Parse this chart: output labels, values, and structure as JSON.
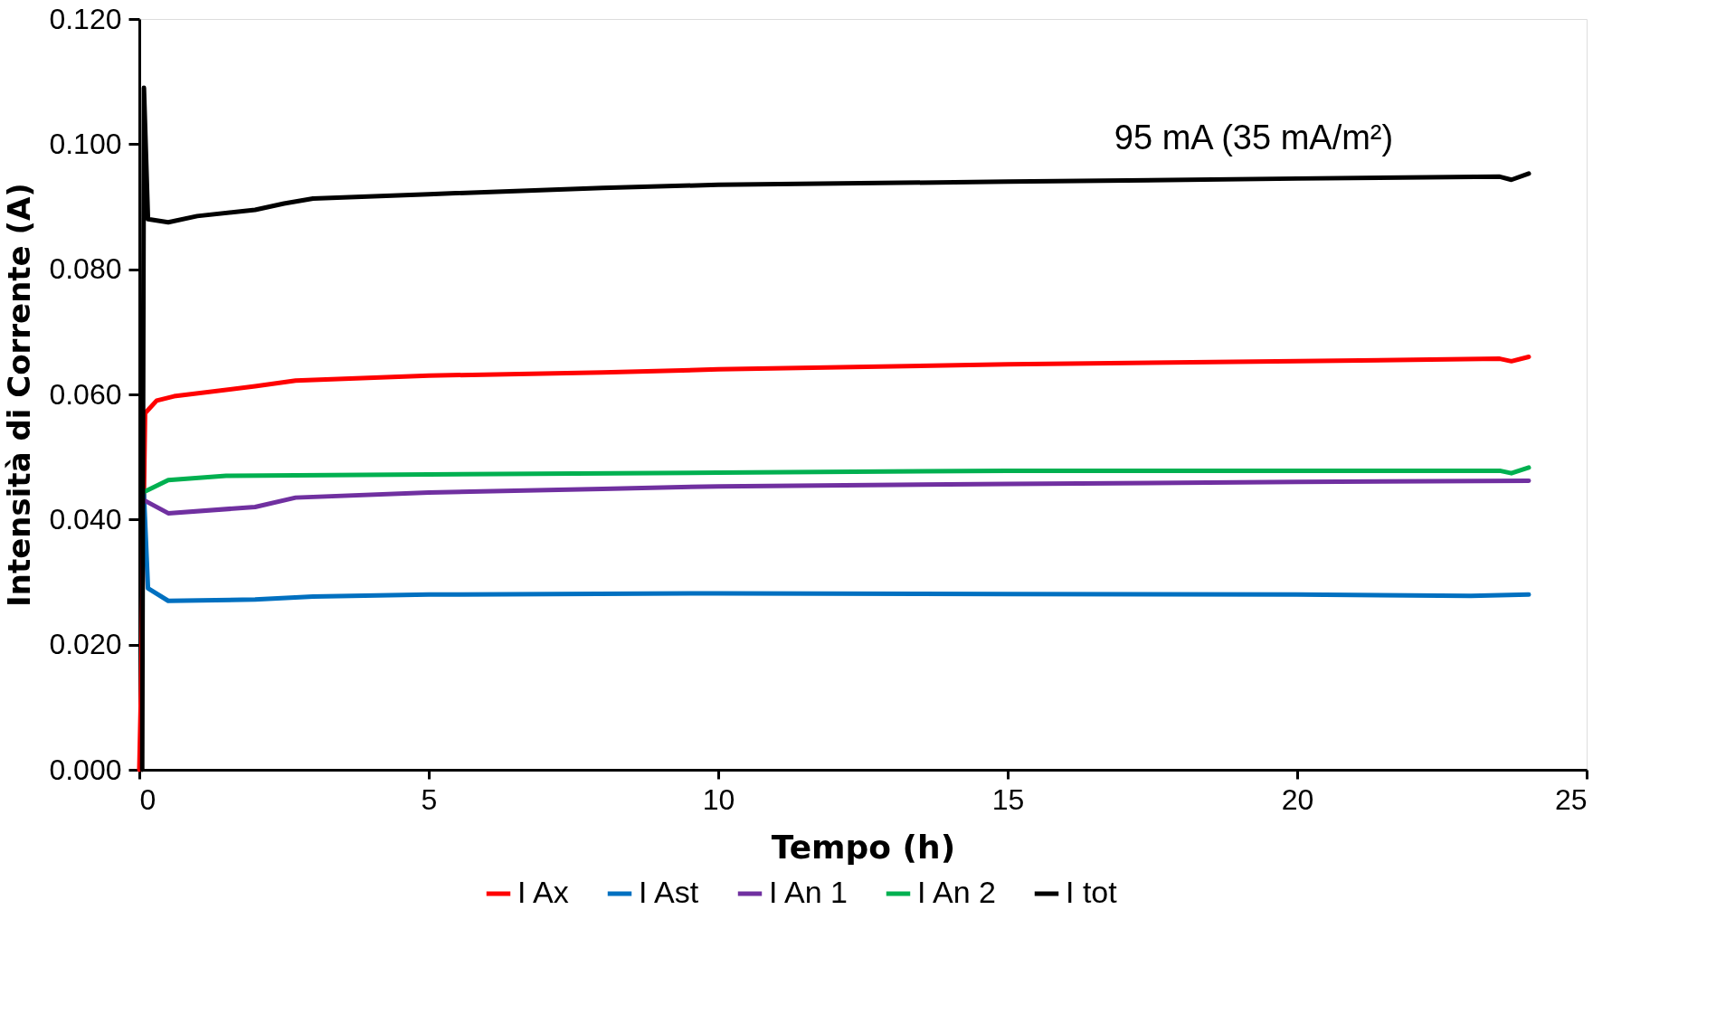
{
  "chart_data": {
    "type": "line",
    "xlabel": "Tempo (h)",
    "ylabel": "Intensità di Corrente (A)",
    "xlim": [
      0,
      25
    ],
    "xticks": [
      0,
      5,
      10,
      15,
      20,
      25
    ],
    "ylim": [
      0,
      0.12
    ],
    "yticks": [
      {
        "value": 0,
        "label": "0.000"
      },
      {
        "value": 0.02,
        "label": "0.020"
      },
      {
        "value": 0.04,
        "label": "0.040"
      },
      {
        "value": 0.06,
        "label": "0.060"
      },
      {
        "value": 0.08,
        "label": "0.080"
      },
      {
        "value": 0.1,
        "label": "0.100"
      },
      {
        "value": 0.12,
        "label": "0.120"
      }
    ],
    "grid": false,
    "legend": "bottom",
    "marker": "none",
    "line_style": "solid",
    "annotations": [
      "95 mA (35 mA/m²)"
    ],
    "series": [
      {
        "name": "I Ax",
        "color": "#ff0000",
        "x": [
          0.0,
          0.03,
          0.1,
          0.3,
          0.6,
          2,
          2.7,
          5,
          8,
          10,
          15,
          20,
          23.5,
          23.7,
          24
        ],
        "values": [
          0.0,
          0.013,
          0.057,
          0.059,
          0.0597,
          0.0613,
          0.0622,
          0.063,
          0.0635,
          0.064,
          0.0648,
          0.0653,
          0.0657,
          0.0653,
          0.066
        ]
      },
      {
        "name": "I Ast",
        "color": "#0070c0",
        "x": [
          0.08,
          0.15,
          0.5,
          2,
          3,
          5,
          10,
          15,
          20,
          23,
          24
        ],
        "values": [
          0.044,
          0.029,
          0.027,
          0.0272,
          0.0277,
          0.028,
          0.0282,
          0.0281,
          0.028,
          0.0278,
          0.028
        ]
      },
      {
        "name": "I An 1",
        "color": "#7030a0",
        "x": [
          0.1,
          0.5,
          2,
          2.7,
          5,
          8,
          10,
          15,
          20,
          24
        ],
        "values": [
          0.043,
          0.041,
          0.042,
          0.0435,
          0.0443,
          0.0449,
          0.0453,
          0.0457,
          0.046,
          0.0462
        ]
      },
      {
        "name": "I An 2",
        "color": "#00b050",
        "x": [
          0.1,
          0.5,
          1.5,
          5,
          10,
          15,
          20,
          23.5,
          23.7,
          24
        ],
        "values": [
          0.0445,
          0.0463,
          0.047,
          0.0472,
          0.0475,
          0.0478,
          0.0478,
          0.0478,
          0.0474,
          0.0483
        ]
      },
      {
        "name": "I tot",
        "color": "#000000",
        "x": [
          0.05,
          0.08,
          0.15,
          0.5,
          1,
          2,
          2.5,
          3,
          5,
          8,
          10,
          15,
          20,
          23.5,
          23.7,
          24
        ],
        "values": [
          0.0,
          0.109,
          0.088,
          0.0875,
          0.0885,
          0.0895,
          0.0905,
          0.0913,
          0.092,
          0.093,
          0.0935,
          0.094,
          0.0945,
          0.0948,
          0.0943,
          0.0953
        ]
      }
    ]
  }
}
